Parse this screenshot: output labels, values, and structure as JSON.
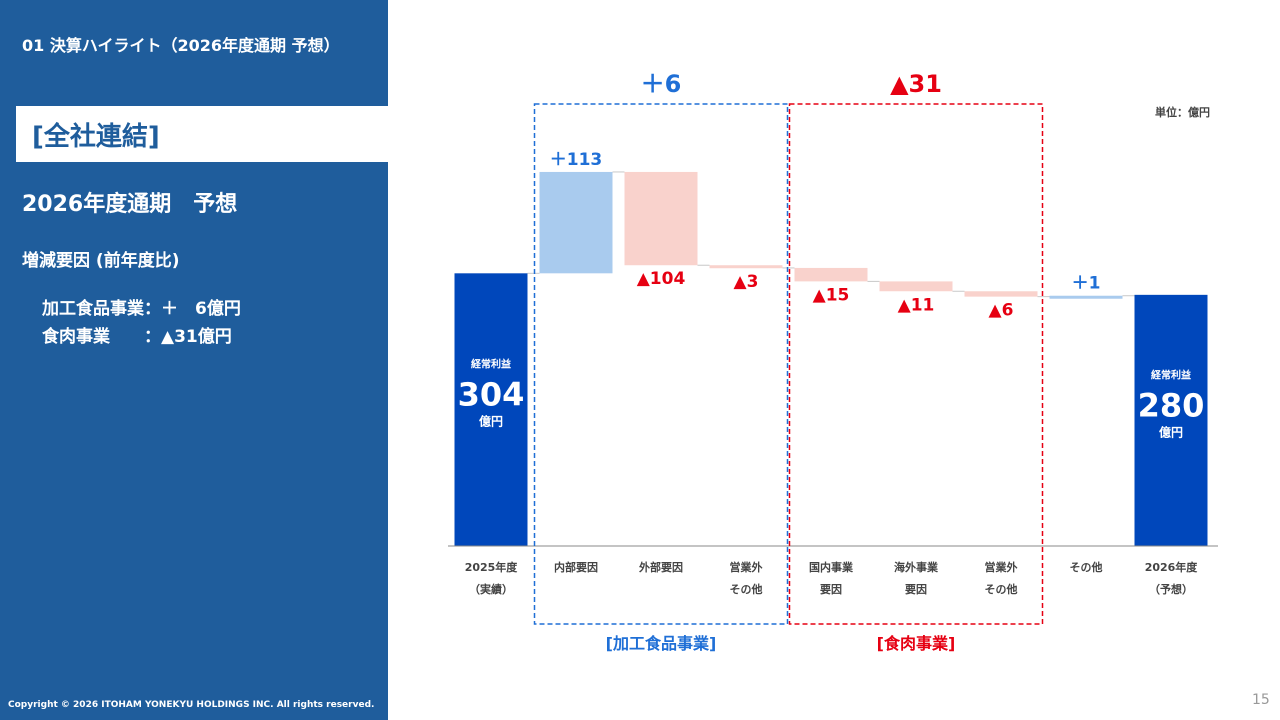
{
  "header": {
    "section_title": "01 決算ハイライト（2026年度通期 予想）"
  },
  "sidebar": {
    "scope_label": "[全社連結]",
    "period_title": "2026年度通期　予想",
    "factors_title": "増減要因 (前年度比)",
    "factors": [
      {
        "text": "加工食品事業：＋　6億円"
      },
      {
        "text": "食肉事業　　：▲31億円"
      }
    ],
    "copyright": "Copyright © 2026 ITOHAM YONEKYU HOLDINGS INC. All rights reserved."
  },
  "page_number": "15",
  "colors": {
    "sidebar_bg": "#1f5d9c",
    "total_bar": "#0047bb",
    "increase_bar": "#a9cbee",
    "decrease_bar": "#f9d2cc",
    "increase_text": "#1f6fd6",
    "decrease_text": "#e60012"
  },
  "chart_data": {
    "type": "waterfall",
    "unit_label": "単位：億円",
    "categories": [
      {
        "line1": "2025年度",
        "line2": "（実績）"
      },
      {
        "line1": "内部要因",
        "line2": ""
      },
      {
        "line1": "外部要因",
        "line2": ""
      },
      {
        "line1": "営業外",
        "line2": "その他"
      },
      {
        "line1": "国内事業",
        "line2": "要因"
      },
      {
        "line1": "海外事業",
        "line2": "要因"
      },
      {
        "line1": "営業外",
        "line2": "その他"
      },
      {
        "line1": "その他",
        "line2": ""
      },
      {
        "line1": "2026年度",
        "line2": "（予想）"
      }
    ],
    "values": [
      304,
      113,
      -104,
      -3,
      -15,
      -11,
      -6,
      1,
      280
    ],
    "kinds": [
      "total",
      "delta",
      "delta",
      "delta",
      "delta",
      "delta",
      "delta",
      "delta",
      "total"
    ],
    "value_labels": [
      "",
      "＋113",
      "▲104",
      "▲3",
      "▲15",
      "▲11",
      "▲6",
      "＋1",
      ""
    ],
    "total_labels": [
      {
        "top": "経常利益",
        "value": "304",
        "unit": "億円"
      },
      {
        "top": "経常利益",
        "value": "280",
        "unit": "億円"
      }
    ],
    "groups": [
      {
        "name": "[加工食品事業]",
        "subtotal": "＋6",
        "from": 1,
        "to": 3,
        "kind": "increase"
      },
      {
        "name": "[食肉事業]",
        "subtotal": "▲31",
        "from": 4,
        "to": 6,
        "kind": "decrease"
      }
    ]
  }
}
